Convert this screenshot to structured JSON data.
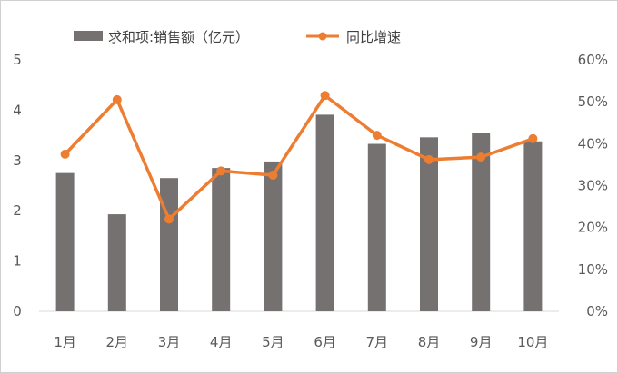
{
  "chart_data": {
    "type": "bar+line",
    "categories": [
      "1月",
      "2月",
      "3月",
      "4月",
      "5月",
      "6月",
      "7月",
      "8月",
      "9月",
      "10月"
    ],
    "series": [
      {
        "name": "求和项:销售额（亿元）",
        "type": "bar",
        "axis": "left",
        "color": "#767171",
        "values": [
          2.75,
          1.93,
          2.65,
          2.85,
          2.98,
          3.91,
          3.33,
          3.46,
          3.55,
          3.38
        ]
      },
      {
        "name": "同比增速",
        "type": "line",
        "axis": "right",
        "color": "#ED7D31",
        "values": [
          0.375,
          0.505,
          0.22,
          0.335,
          0.325,
          0.515,
          0.42,
          0.362,
          0.368,
          0.412
        ]
      }
    ],
    "y_left": {
      "min": 0,
      "max": 5,
      "ticks": [
        "0",
        "1",
        "2",
        "3",
        "4",
        "5"
      ]
    },
    "y_right": {
      "min": 0,
      "max": 0.6,
      "ticks": [
        "0%",
        "10%",
        "20%",
        "30%",
        "40%",
        "50%",
        "60%"
      ]
    },
    "legend_position": "top",
    "grid": false
  }
}
